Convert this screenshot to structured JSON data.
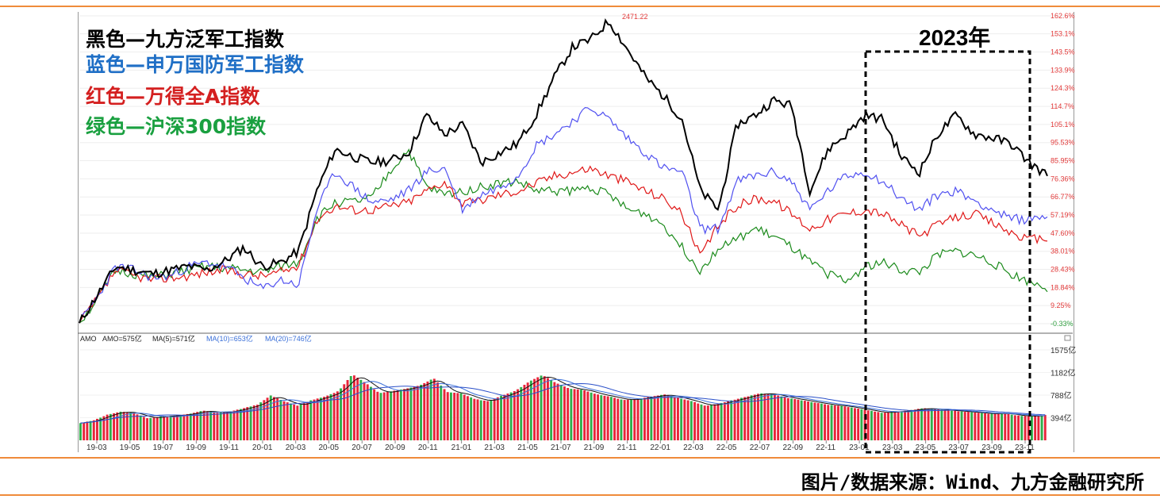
{
  "legend": {
    "black": "黑色—九方泛军工指数",
    "blue": "蓝色—申万国防军工指数",
    "red": "红色—万得全A指数",
    "green": "绿色—沪深300指数"
  },
  "year_label": "2023年",
  "source": "图片/数据来源：Wind、九方金融研究所",
  "peak_label": "2471.22",
  "indicator": {
    "name": "AMO",
    "amo": "AMO=575亿",
    "ma5": "MA(5)=571亿",
    "ma10": "MA(10)=653亿",
    "ma20": "MA(20)=746亿"
  },
  "colors": {
    "black": "#000000",
    "blue": "#5050f0",
    "red": "#e01818",
    "green": "#1a8a1a",
    "accent": "#ef8b3a",
    "ma10": "#3a6fd8",
    "ma20": "#3a6fd8"
  },
  "chart_data": {
    "type": "line",
    "x_labels": [
      "19-03",
      "19-05",
      "19-07",
      "19-09",
      "19-11",
      "20-01",
      "20-03",
      "20-05",
      "20-07",
      "20-09",
      "20-11",
      "21-01",
      "21-03",
      "21-05",
      "21-07",
      "21-09",
      "21-11",
      "22-01",
      "22-03",
      "22-05",
      "22-07",
      "22-09",
      "22-11",
      "23-01",
      "23-03",
      "23-05",
      "23-07",
      "23-09",
      "23-11"
    ],
    "y_ticks": [
      "162.6%",
      "153.1%",
      "143.5%",
      "133.9%",
      "124.3%",
      "114.7%",
      "105.1%",
      "95.53%",
      "85.95%",
      "76.36%",
      "66.77%",
      "57.19%",
      "47.60%",
      "38.01%",
      "28.43%",
      "18.84%",
      "9.25%",
      "-0.33%"
    ],
    "y_unit": "%",
    "ylim": [
      -0.33,
      162.6
    ],
    "series": [
      {
        "name": "九方泛军工指数",
        "color": "black",
        "values": [
          0,
          15,
          30,
          28,
          26,
          28,
          30,
          28,
          33,
          40,
          30,
          32,
          38,
          70,
          92,
          88,
          85,
          86,
          90,
          110,
          100,
          105,
          85,
          90,
          95,
          110,
          130,
          146,
          150,
          160,
          145,
          130,
          120,
          108,
          70,
          60,
          105,
          110,
          118,
          115,
          70,
          92,
          100,
          110,
          108,
          88,
          80,
          100,
          110,
          100,
          98,
          95,
          85,
          78
        ]
      },
      {
        "name": "申万国防军工指数",
        "color": "blue",
        "values": [
          0,
          14,
          30,
          28,
          24,
          25,
          30,
          32,
          30,
          24,
          18,
          23,
          20,
          60,
          80,
          72,
          64,
          65,
          70,
          80,
          82,
          60,
          68,
          72,
          78,
          94,
          100,
          107,
          114,
          108,
          98,
          90,
          82,
          80,
          50,
          50,
          75,
          78,
          80,
          75,
          60,
          70,
          78,
          80,
          75,
          66,
          60,
          68,
          70,
          65,
          60,
          55,
          55,
          57
        ]
      },
      {
        "name": "万得全A指数",
        "color": "red",
        "values": [
          0,
          13,
          28,
          25,
          23,
          24,
          25,
          27,
          28,
          26,
          25,
          27,
          30,
          55,
          62,
          60,
          60,
          62,
          64,
          70,
          75,
          63,
          65,
          68,
          70,
          74,
          78,
          80,
          82,
          78,
          75,
          70,
          66,
          58,
          35,
          52,
          62,
          66,
          65,
          58,
          50,
          55,
          58,
          60,
          58,
          52,
          46,
          52,
          56,
          58,
          53,
          48,
          44,
          45
        ]
      },
      {
        "name": "沪深300指数",
        "color": "green",
        "values": [
          0,
          13,
          28,
          26,
          24,
          26,
          28,
          30,
          29,
          28,
          27,
          30,
          32,
          55,
          64,
          64,
          66,
          80,
          92,
          72,
          68,
          70,
          72,
          74,
          75,
          70,
          70,
          70,
          72,
          68,
          60,
          58,
          52,
          40,
          28,
          40,
          44,
          50,
          46,
          40,
          32,
          26,
          22,
          30,
          32,
          28,
          27,
          36,
          38,
          36,
          32,
          26,
          22,
          19
        ]
      }
    ],
    "volume": {
      "y_ticks": [
        "1575亿",
        "1182亿",
        "788亿",
        "394亿"
      ],
      "values": [
        300,
        350,
        450,
        500,
        470,
        380,
        420,
        430,
        460,
        520,
        480,
        500,
        560,
        620,
        780,
        680,
        600,
        700,
        760,
        860,
        1150,
        1000,
        820,
        860,
        900,
        960,
        1080,
        840,
        820,
        720,
        680,
        780,
        860,
        1020,
        1140,
        1000,
        900,
        880,
        800,
        760,
        700,
        720,
        760,
        800,
        740,
        680,
        600,
        640,
        700,
        760,
        820,
        800,
        740,
        700,
        660,
        620,
        600,
        560,
        520,
        480,
        500,
        520,
        560,
        540,
        520,
        500,
        480,
        460,
        470,
        430,
        420,
        440
      ]
    }
  }
}
